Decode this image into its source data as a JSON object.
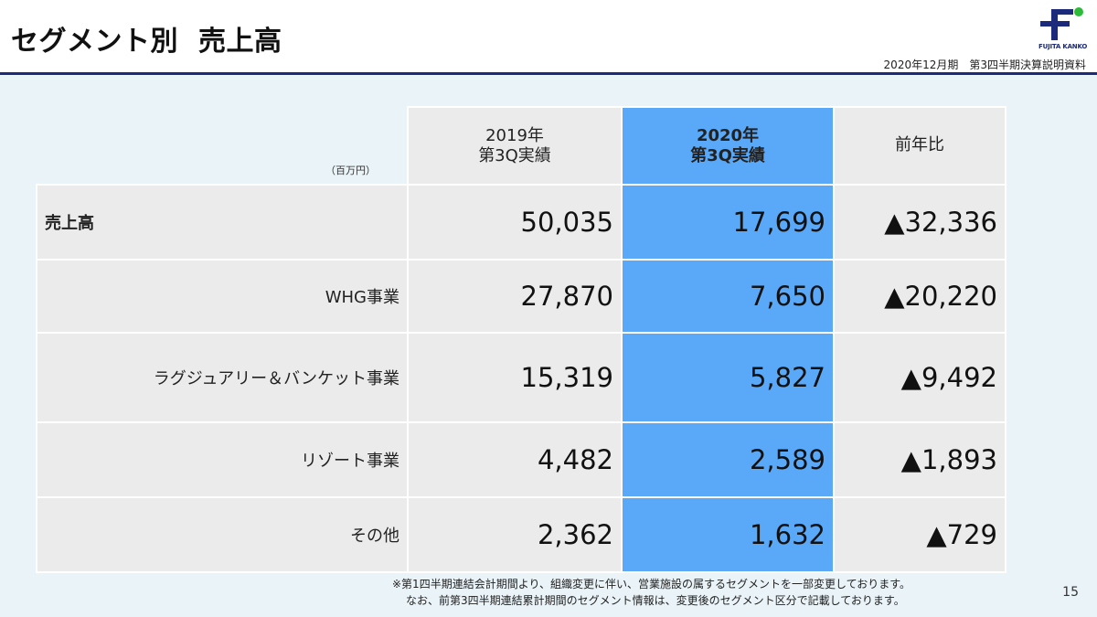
{
  "header": {
    "title_part1": "セグメント別",
    "title_part2": "売上高",
    "subtitle": "2020年12月期　第3四半期決算説明資料",
    "logo_text": "FUJITA KANKO",
    "colors": {
      "navy": "#1b2a7a",
      "green": "#2dbb3a",
      "highlight": "#5aa9f8"
    }
  },
  "table": {
    "unit": "（百万円）",
    "columns": [
      {
        "line1": "2019年",
        "line2": "第3Q実績"
      },
      {
        "line1": "2020年",
        "line2": "第3Q実績"
      },
      {
        "line1": "前年比",
        "line2": ""
      }
    ],
    "rows": [
      {
        "label": "売上高",
        "v2019": "50,035",
        "v2020": "17,699",
        "diff": "▲32,336"
      },
      {
        "label": "WHG事業",
        "v2019": "27,870",
        "v2020": "7,650",
        "diff": "▲20,220"
      },
      {
        "label": "ラグジュアリー＆バンケット事業",
        "v2019": "15,319",
        "v2020": "5,827",
        "diff": "▲9,492"
      },
      {
        "label": "リゾート事業",
        "v2019": "4,482",
        "v2020": "2,589",
        "diff": "▲1,893"
      },
      {
        "label": "その他",
        "v2019": "2,362",
        "v2020": "1,632",
        "diff": "▲729"
      }
    ]
  },
  "footnote": {
    "line1": "※第1四半期連結会計期間より、組織変更に伴い、営業施設の属するセグメントを一部変更しております。",
    "line2": "なお、前第3四半期連結累計期間のセグメント情報は、変更後のセグメント区分で記載しております。"
  },
  "page_number": "15"
}
